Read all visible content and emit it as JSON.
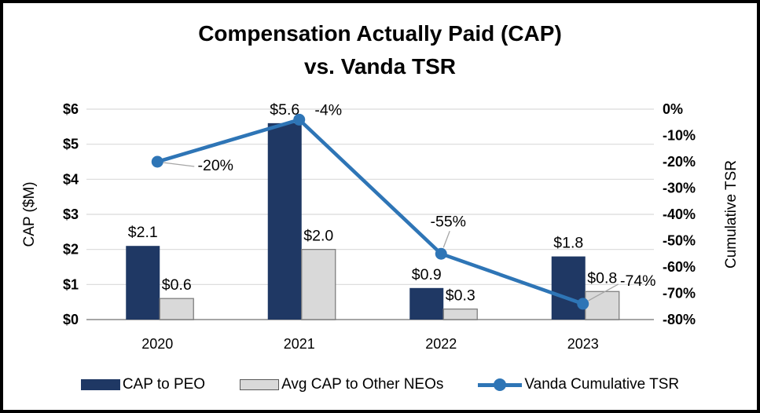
{
  "title": {
    "line1": "Compensation Actually Paid (CAP)",
    "line2": "vs. Vanda TSR"
  },
  "chart_data": {
    "type": "combo-bar-line",
    "categories": [
      "2020",
      "2021",
      "2022",
      "2023"
    ],
    "series": [
      {
        "name": "CAP to PEO",
        "type": "bar",
        "axis": "left",
        "values": [
          2.1,
          5.6,
          0.9,
          1.8
        ],
        "data_labels": [
          "$2.1",
          "$5.6",
          "$0.9",
          "$1.8"
        ],
        "color": "#1F3864"
      },
      {
        "name": "Avg CAP to Other NEOs",
        "type": "bar",
        "axis": "left",
        "values": [
          0.6,
          2.0,
          0.3,
          0.8
        ],
        "data_labels": [
          "$0.6",
          "$2.0",
          "$0.3",
          "$0.8"
        ],
        "color": "#D9D9D9",
        "border_color": "#7F7F7F"
      },
      {
        "name": "Vanda Cumulative TSR",
        "type": "line",
        "axis": "right",
        "values": [
          -20,
          -4,
          -55,
          -74
        ],
        "data_labels": [
          "-20%",
          "-4%",
          "-55%",
          "-74%"
        ],
        "color": "#2E75B6"
      }
    ],
    "left_axis": {
      "label": "CAP ($M)",
      "tick_labels": [
        "$6",
        "$5",
        "$4",
        "$3",
        "$2",
        "$1",
        "$0"
      ],
      "min": 0,
      "max": 6
    },
    "right_axis": {
      "label": "Cumulative TSR",
      "tick_labels": [
        "0%",
        "-10%",
        "-20%",
        "-30%",
        "-40%",
        "-50%",
        "-60%",
        "-70%",
        "-80%"
      ],
      "min": -80,
      "max": 0
    },
    "grid": true,
    "legend_position": "bottom"
  },
  "legend": {
    "items": [
      {
        "label": "CAP to PEO",
        "swatch": "bar",
        "color": "#1F3864"
      },
      {
        "label": "Avg CAP to Other NEOs",
        "swatch": "bar",
        "color": "#D9D9D9",
        "border_color": "#595959"
      },
      {
        "label": "Vanda Cumulative TSR",
        "swatch": "line",
        "color": "#2E75B6"
      }
    ]
  },
  "colors": {
    "peo_bar": "#1F3864",
    "neo_bar_fill": "#D9D9D9",
    "neo_bar_border": "#7F7F7F",
    "tsr_line": "#2E75B6",
    "gridline": "#D9D9D9",
    "axis_line": "#A6A6A6",
    "leader_line": "#A6A6A6",
    "text": "#000000"
  }
}
